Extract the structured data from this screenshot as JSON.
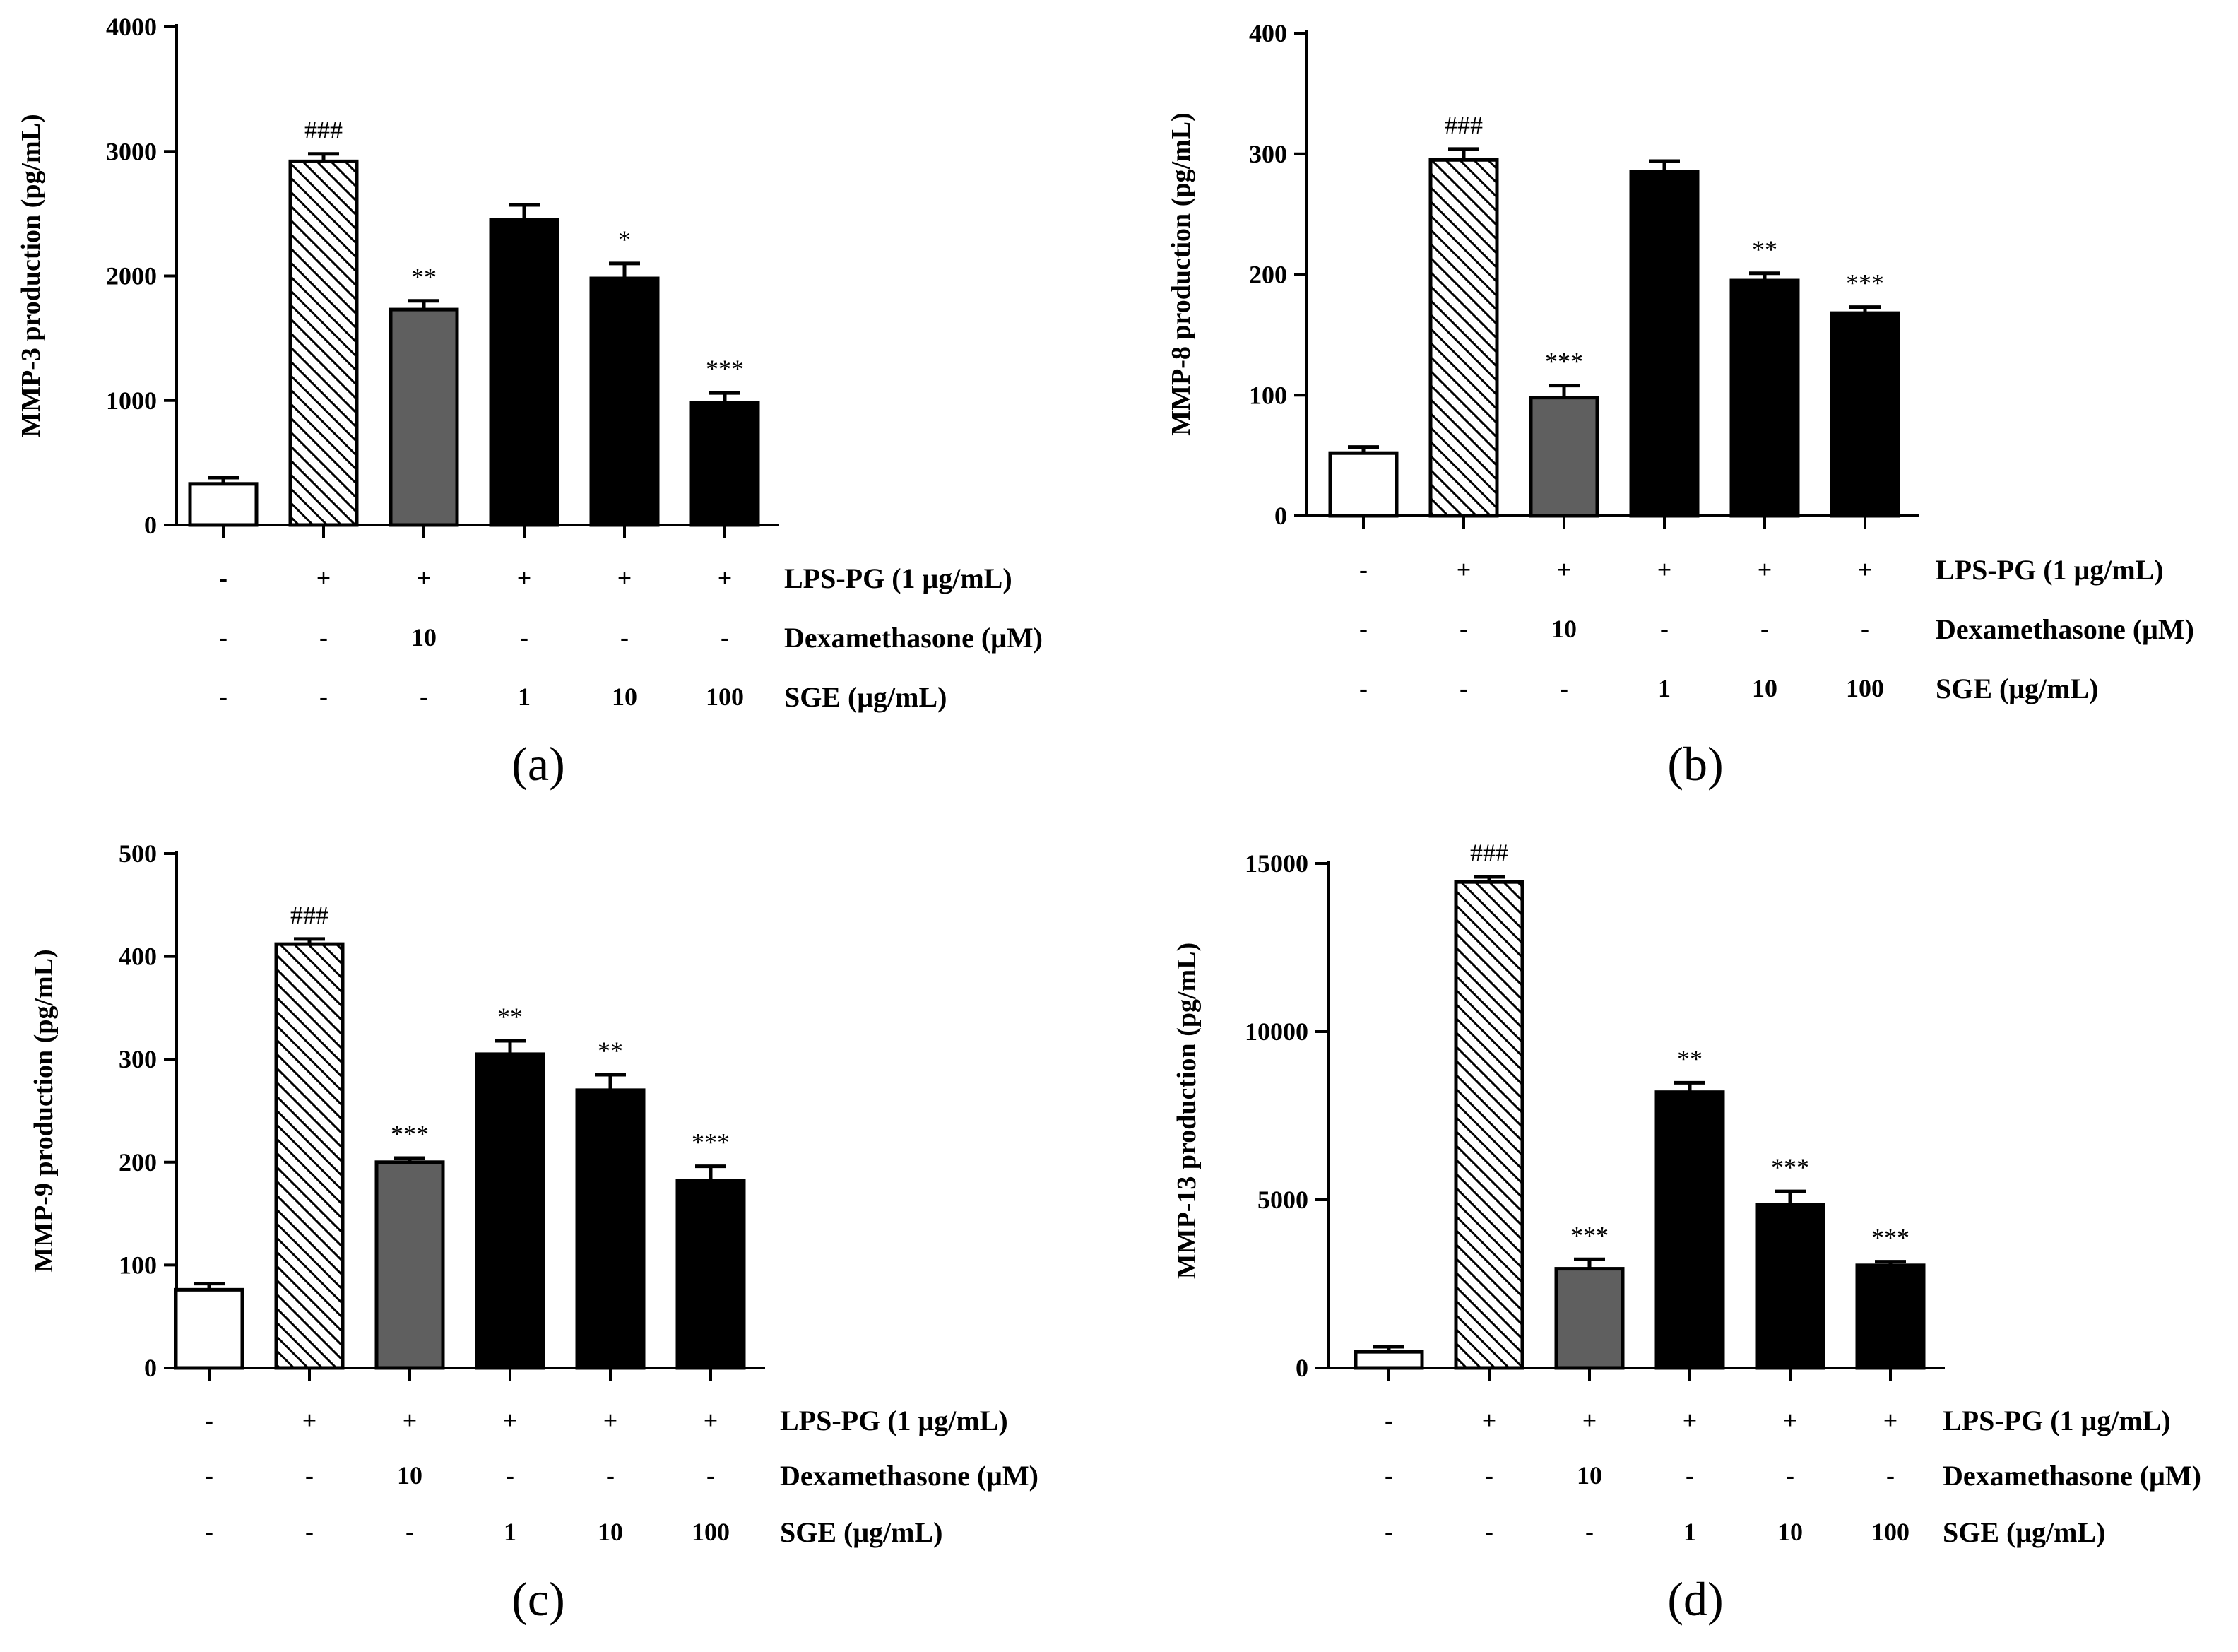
{
  "chart_data": [
    {
      "type": "bar",
      "panel_label": "(a)",
      "ylabel": "MMP-3 production (pg/mL)",
      "ylim": [
        0,
        4000
      ],
      "yticks": [
        0,
        1000,
        2000,
        3000,
        4000
      ],
      "values": [
        330,
        2920,
        1730,
        2450,
        1980,
        980
      ],
      "errors": [
        50,
        60,
        70,
        120,
        120,
        80
      ],
      "fills": [
        "white",
        "hatch",
        "gray",
        "black",
        "black",
        "black"
      ],
      "annotations": [
        "",
        "###",
        "**",
        "",
        "*",
        "***"
      ],
      "rows": [
        {
          "label": "LPS-PG (1 μg/mL)",
          "cells": [
            "-",
            "+",
            "+",
            "+",
            "+",
            "+"
          ]
        },
        {
          "label": "Dexamethasone (μM)",
          "cells": [
            "-",
            "-",
            "10",
            "-",
            "-",
            "-"
          ]
        },
        {
          "label": "SGE (μg/mL)",
          "cells": [
            "-",
            "-",
            "-",
            "1",
            "10",
            "100"
          ]
        }
      ]
    },
    {
      "type": "bar",
      "panel_label": "(b)",
      "ylabel": "MMP-8 production (pg/mL)",
      "ylim": [
        0,
        400
      ],
      "yticks": [
        0,
        100,
        200,
        300,
        400
      ],
      "values": [
        52,
        295,
        98,
        285,
        195,
        168
      ],
      "errors": [
        5,
        9,
        10,
        9,
        6,
        5
      ],
      "fills": [
        "white",
        "hatch",
        "gray",
        "black",
        "black",
        "black"
      ],
      "annotations": [
        "",
        "###",
        "***",
        "",
        "**",
        "***"
      ],
      "rows": [
        {
          "label": "LPS-PG (1 μg/mL)",
          "cells": [
            "-",
            "+",
            "+",
            "+",
            "+",
            "+"
          ]
        },
        {
          "label": "Dexamethasone (μM)",
          "cells": [
            "-",
            "-",
            "10",
            "-",
            "-",
            "-"
          ]
        },
        {
          "label": "SGE (μg/mL)",
          "cells": [
            "-",
            "-",
            "-",
            "1",
            "10",
            "100"
          ]
        }
      ]
    },
    {
      "type": "bar",
      "panel_label": "(c)",
      "ylabel": "MMP-9 production (pg/mL)",
      "ylim": [
        0,
        500
      ],
      "yticks": [
        0,
        100,
        200,
        300,
        400,
        500
      ],
      "values": [
        76,
        412,
        200,
        305,
        270,
        182
      ],
      "errors": [
        6,
        5,
        4,
        13,
        15,
        14
      ],
      "fills": [
        "white",
        "hatch",
        "gray",
        "black",
        "black",
        "black"
      ],
      "annotations": [
        "",
        "###",
        "***",
        "**",
        "**",
        "***"
      ],
      "rows": [
        {
          "label": "LPS-PG (1 μg/mL)",
          "cells": [
            "-",
            "+",
            "+",
            "+",
            "+",
            "+"
          ]
        },
        {
          "label": "Dexamethasone (μM)",
          "cells": [
            "-",
            "-",
            "10",
            "-",
            "-",
            "-"
          ]
        },
        {
          "label": "SGE (μg/mL)",
          "cells": [
            "-",
            "-",
            "-",
            "1",
            "10",
            "100"
          ]
        }
      ]
    },
    {
      "type": "bar",
      "panel_label": "(d)",
      "ylabel": "MMP-13 production (pg/mL)",
      "ylim": [
        0,
        15000
      ],
      "yticks": [
        0,
        5000,
        10000,
        15000
      ],
      "values": [
        480,
        14450,
        2950,
        8200,
        4850,
        3050
      ],
      "errors": [
        150,
        150,
        280,
        280,
        400,
        110
      ],
      "fills": [
        "white",
        "hatch",
        "gray",
        "black",
        "black",
        "black"
      ],
      "annotations": [
        "",
        "###",
        "***",
        "**",
        "***",
        "***"
      ],
      "rows": [
        {
          "label": "LPS-PG (1 μg/mL)",
          "cells": [
            "-",
            "+",
            "+",
            "+",
            "+",
            "+"
          ]
        },
        {
          "label": "Dexamethasone (μM)",
          "cells": [
            "-",
            "-",
            "10",
            "-",
            "-",
            "-"
          ]
        },
        {
          "label": "SGE (μg/mL)",
          "cells": [
            "-",
            "-",
            "-",
            "1",
            "10",
            "100"
          ]
        }
      ]
    }
  ]
}
